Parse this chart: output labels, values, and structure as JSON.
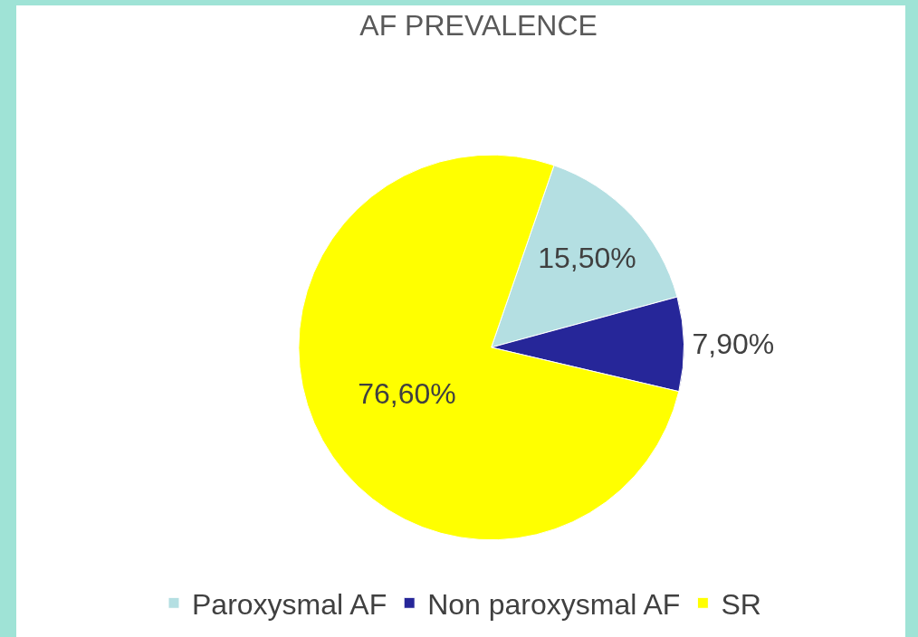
{
  "chart_data": {
    "type": "pie",
    "title": "AF PREVALENCE",
    "categories": [
      "Paroxysmal AF",
      "Non paroxysmal AF",
      "SR"
    ],
    "values": [
      15.5,
      7.9,
      76.6
    ],
    "colors": [
      "#b4dfe2",
      "#262699",
      "#ffff00"
    ],
    "value_labels": [
      "15,50%",
      "7,90%",
      "76,60%"
    ],
    "legend": "bottom"
  }
}
